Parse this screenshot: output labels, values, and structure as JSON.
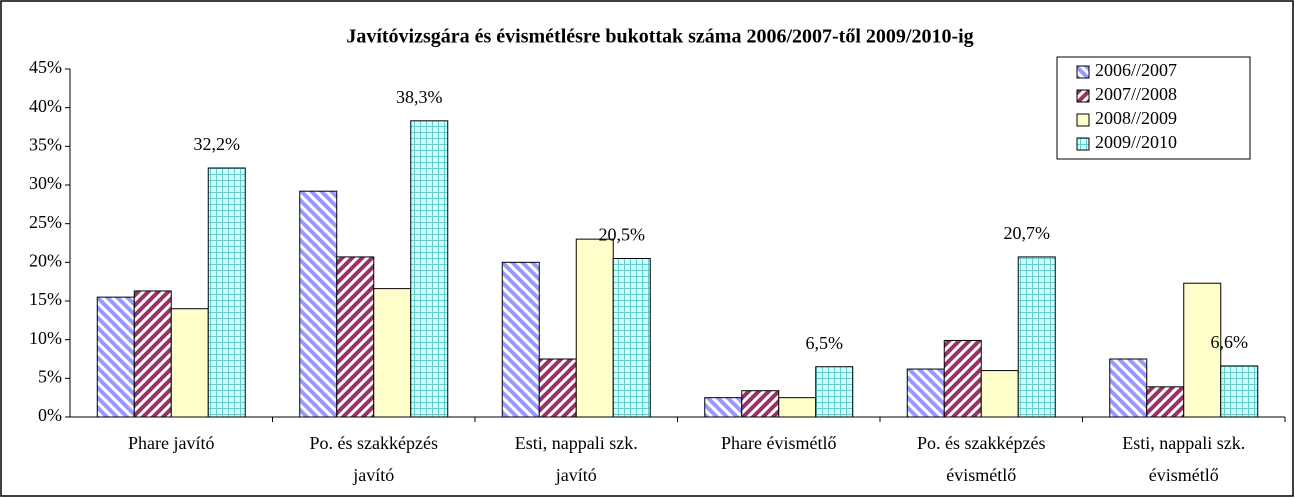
{
  "chart_data": {
    "type": "bar",
    "title": "Javítóvizsgára és évismétlésre bukottak száma 2006/2007-től 2009/2010-ig",
    "categories": [
      "Phare javító",
      "Po. és szakképzés\njavító",
      "Esti, nappali szk.\njavító",
      "Phare évismétlő",
      "Po. és szakképzés\névismétlő",
      "Esti, nappali szk.\névismétlő"
    ],
    "series": [
      {
        "name": "2006//2007",
        "color": "#9999ff",
        "values": [
          15.5,
          29.2,
          20.0,
          2.5,
          6.2,
          7.5
        ]
      },
      {
        "name": "2007//2008",
        "color": "#993366",
        "values": [
          16.3,
          20.7,
          7.5,
          3.4,
          9.9,
          3.9
        ]
      },
      {
        "name": "2008//2009",
        "color": "#ffffcc",
        "values": [
          14.0,
          16.6,
          23.0,
          2.5,
          6.0,
          17.3
        ]
      },
      {
        "name": "2009//2010",
        "color": "#ccffff",
        "values": [
          32.2,
          38.3,
          20.5,
          6.5,
          20.7,
          6.6
        ],
        "value_labels": [
          "32,2%",
          "38,3%",
          "20,5%",
          "6,5%",
          "20,7%",
          "6,6%"
        ]
      }
    ],
    "ylim": [
      0,
      45
    ],
    "yticks": [
      {
        "value": 0,
        "label": "0%"
      },
      {
        "value": 5,
        "label": "5%"
      },
      {
        "value": 10,
        "label": "10%"
      },
      {
        "value": 15,
        "label": "15%"
      },
      {
        "value": 20,
        "label": "20%"
      },
      {
        "value": 25,
        "label": "25%"
      },
      {
        "value": 30,
        "label": "30%"
      },
      {
        "value": 35,
        "label": "35%"
      },
      {
        "value": 40,
        "label": "40%"
      },
      {
        "value": 45,
        "label": "45%"
      }
    ],
    "legend": "top-right"
  }
}
